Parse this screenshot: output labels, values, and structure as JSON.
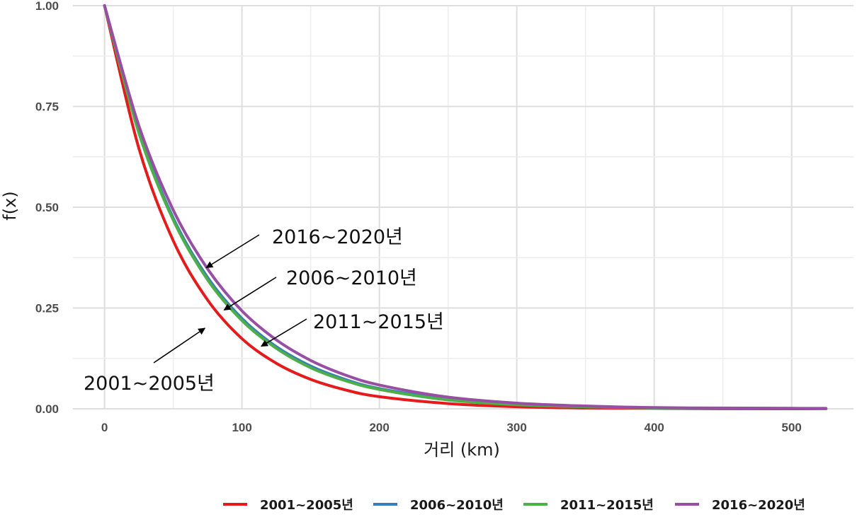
{
  "chart_data": {
    "type": "line",
    "title": "",
    "xlabel": "거리 (km)",
    "ylabel": "f(x)",
    "xlim": [
      -23,
      545
    ],
    "ylim": [
      0,
      1
    ],
    "x_ticks": [
      0,
      100,
      200,
      300,
      400,
      500
    ],
    "y_ticks": [
      0.0,
      0.25,
      0.5,
      0.75,
      1.0
    ],
    "x_tick_labels": [
      "0",
      "100",
      "200",
      "300",
      "400",
      "500"
    ],
    "y_tick_labels": [
      "0.00",
      "0.25",
      "0.50",
      "0.75",
      "1.00"
    ],
    "grid": true,
    "legend_position": "bottom",
    "x": [
      0,
      25,
      50,
      75,
      100,
      125,
      150,
      175,
      200,
      250,
      300,
      350,
      400,
      450,
      500,
      525
    ],
    "series": [
      {
        "name": "2001~2005년",
        "color": "#e41a1c",
        "values": [
          1.0,
          0.646,
          0.417,
          0.27,
          0.174,
          0.113,
          0.073,
          0.047,
          0.03,
          0.013,
          0.005,
          0.002,
          0.001,
          0.0,
          0.0,
          0.0
        ]
      },
      {
        "name": "2006~2010년",
        "color": "#377eb8",
        "values": [
          1.0,
          0.688,
          0.473,
          0.326,
          0.224,
          0.154,
          0.106,
          0.073,
          0.05,
          0.024,
          0.011,
          0.005,
          0.002,
          0.001,
          0.001,
          0.0
        ]
      },
      {
        "name": "2011~2015년",
        "color": "#4daf4a",
        "values": [
          1.0,
          0.684,
          0.468,
          0.32,
          0.219,
          0.15,
          0.102,
          0.07,
          0.048,
          0.022,
          0.01,
          0.005,
          0.002,
          0.001,
          0.001,
          0.0
        ]
      },
      {
        "name": "2016~2020년",
        "color": "#984ea3",
        "values": [
          1.0,
          0.702,
          0.493,
          0.347,
          0.243,
          0.171,
          0.12,
          0.084,
          0.059,
          0.029,
          0.014,
          0.007,
          0.003,
          0.002,
          0.001,
          0.001
        ]
      }
    ],
    "annotations": [
      {
        "text": "2016~2020년",
        "series": "2016~2020년",
        "point_x": 74,
        "point_y": 0.35
      },
      {
        "text": "2006~2010년",
        "series": "2006~2010년",
        "point_x": 87,
        "point_y": 0.245
      },
      {
        "text": "2011~2015년",
        "series": "2011~2015년",
        "point_x": 114,
        "point_y": 0.155
      },
      {
        "text": "2001~2005년",
        "series": "2001~2005년",
        "point_x": 73,
        "point_y": 0.2
      }
    ]
  }
}
